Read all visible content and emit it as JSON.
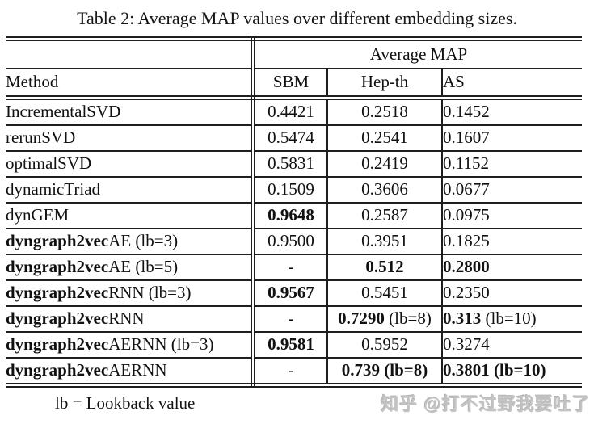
{
  "caption": "Table 2: Average MAP values over different embedding sizes.",
  "table": {
    "group_header": "Average MAP",
    "columns": [
      "Method",
      "SBM",
      "Hep-th",
      "AS"
    ],
    "rows": [
      {
        "method": {
          "b": "",
          "n": "IncrementalSVD"
        },
        "cells": [
          {
            "b": "",
            "n": "0.4421"
          },
          {
            "b": "",
            "n": "0.2518"
          },
          {
            "b": "",
            "n": "0.1452"
          }
        ]
      },
      {
        "method": {
          "b": "",
          "n": "rerunSVD"
        },
        "cells": [
          {
            "b": "",
            "n": "0.5474"
          },
          {
            "b": "",
            "n": "0.2541"
          },
          {
            "b": "",
            "n": "0.1607"
          }
        ]
      },
      {
        "method": {
          "b": "",
          "n": "optimalSVD"
        },
        "cells": [
          {
            "b": "",
            "n": "0.5831"
          },
          {
            "b": "",
            "n": "0.2419"
          },
          {
            "b": "",
            "n": "0.1152"
          }
        ]
      },
      {
        "method": {
          "b": "",
          "n": "dynamicTriad"
        },
        "cells": [
          {
            "b": "",
            "n": "0.1509"
          },
          {
            "b": "",
            "n": "0.3606"
          },
          {
            "b": "",
            "n": "0.0677"
          }
        ]
      },
      {
        "method": {
          "b": "",
          "n": "dynGEM"
        },
        "cells": [
          {
            "b": "0.9648",
            "n": ""
          },
          {
            "b": "",
            "n": "0.2587"
          },
          {
            "b": "",
            "n": "0.0975"
          }
        ]
      },
      {
        "method": {
          "b": "dyngraph2vec",
          "n": "AE (lb=3)"
        },
        "cells": [
          {
            "b": "",
            "n": "0.9500"
          },
          {
            "b": "",
            "n": "0.3951"
          },
          {
            "b": "",
            "n": "0.1825"
          }
        ]
      },
      {
        "method": {
          "b": "dyngraph2vec",
          "n": "AE (lb=5)"
        },
        "cells": [
          {
            "b": "",
            "n": "-"
          },
          {
            "b": "0.512",
            "n": ""
          },
          {
            "b": "0.2800",
            "n": ""
          }
        ]
      },
      {
        "method": {
          "b": "dyngraph2vec",
          "n": "RNN (lb=3)"
        },
        "cells": [
          {
            "b": "0.9567",
            "n": ""
          },
          {
            "b": "",
            "n": "0.5451"
          },
          {
            "b": "",
            "n": "0.2350"
          }
        ]
      },
      {
        "method": {
          "b": "dyngraph2vec",
          "n": "RNN"
        },
        "cells": [
          {
            "b": "",
            "n": "-"
          },
          {
            "b": "0.7290",
            "n": " (lb=8)"
          },
          {
            "b": "0.313",
            "n": " (lb=10)"
          }
        ]
      },
      {
        "method": {
          "b": "dyngraph2vec",
          "n": "AERNN (lb=3)"
        },
        "cells": [
          {
            "b": "0.9581",
            "n": ""
          },
          {
            "b": "",
            "n": "0.5952"
          },
          {
            "b": "",
            "n": "0.3274"
          }
        ]
      },
      {
        "method": {
          "b": "dyngraph2vec",
          "n": "AERNN"
        },
        "cells": [
          {
            "b": "",
            "n": "-"
          },
          {
            "b": "0.739 (lb=8)",
            "n": ""
          },
          {
            "b": "0.3801 (lb=10)",
            "n": ""
          }
        ]
      }
    ]
  },
  "footnote": "lb = Lookback value",
  "watermark": "知乎 @打不过野我要吐了",
  "colors": {
    "text": "#111111",
    "rule": "#1e1e1e",
    "watermark": "#c3c3c3",
    "background": "#ffffff"
  }
}
